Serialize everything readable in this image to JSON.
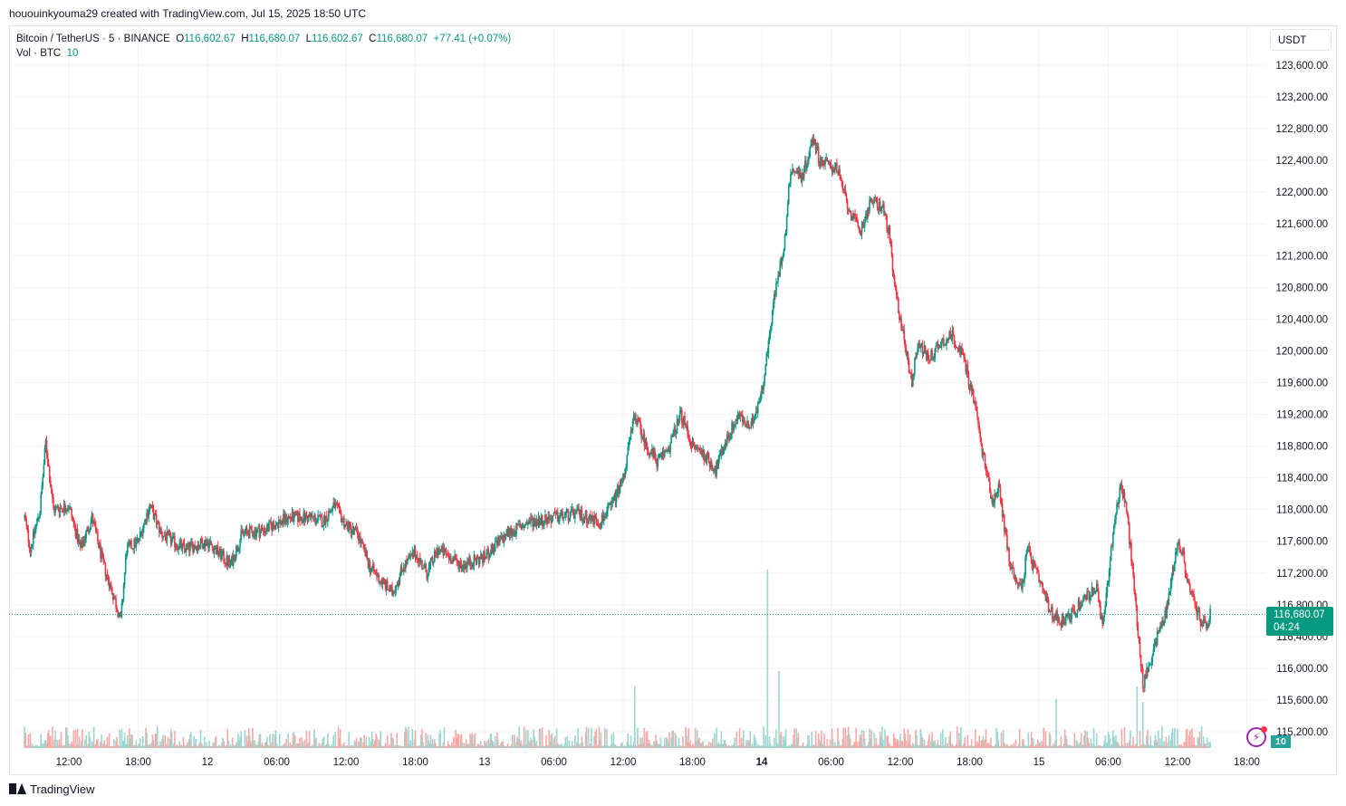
{
  "header": {
    "created": "hououinkyouma29 created with TradingView.com, Jul 15, 2025 18:50 UTC"
  },
  "legend": {
    "symbol": "Bitcoin / TetherUS · 5 · BINANCE",
    "o_key": "O",
    "o": "116,602.67",
    "h_key": "H",
    "h": "116,680.07",
    "l_key": "L",
    "l": "116,602.67",
    "c_key": "C",
    "c": "116,680.07",
    "change": "+77.41 (+0.07%)",
    "vol_label": "Vol · BTC",
    "vol_value": "10"
  },
  "currency": "USDT",
  "last_price": {
    "price": "116,680.07",
    "countdown": "04:24"
  },
  "volume_badge": "10",
  "footer": {
    "brand": "TradingView"
  },
  "colors": {
    "up": "#089981",
    "down": "#f23645",
    "vol_up": "#9bd6cf",
    "vol_down": "#f7a9a7",
    "grid": "#f0f3fa"
  },
  "icons": {
    "alert": "lightning-icon",
    "logo": "tradingview-logo-icon"
  },
  "chart_data": {
    "type": "candlestick",
    "interval": "5",
    "ylim": [
      115000,
      123800
    ],
    "y_ticks": [
      "123,600.00",
      "123,200.00",
      "122,800.00",
      "122,400.00",
      "122,000.00",
      "121,600.00",
      "121,200.00",
      "120,800.00",
      "120,400.00",
      "120,000.00",
      "119,600.00",
      "119,200.00",
      "118,800.00",
      "118,400.00",
      "118,000.00",
      "117,600.00",
      "117,200.00",
      "116,800.00",
      "116,400.00",
      "116,000.00",
      "115,600.00",
      "115,200.00"
    ],
    "y_tick_values": [
      123600,
      123200,
      122800,
      122400,
      122000,
      121600,
      121200,
      120800,
      120400,
      120000,
      119600,
      119200,
      118800,
      118400,
      118000,
      117600,
      117200,
      116800,
      116400,
      116000,
      115600,
      115200
    ],
    "x_ticks": [
      {
        "label": "12:00",
        "t": "2025-07-11 12:00",
        "bold": false
      },
      {
        "label": "18:00",
        "t": "2025-07-11 18:00",
        "bold": false
      },
      {
        "label": "12",
        "t": "2025-07-12 00:00",
        "bold": false
      },
      {
        "label": "06:00",
        "t": "2025-07-12 06:00",
        "bold": false
      },
      {
        "label": "12:00",
        "t": "2025-07-12 12:00",
        "bold": false
      },
      {
        "label": "18:00",
        "t": "2025-07-12 18:00",
        "bold": false
      },
      {
        "label": "13",
        "t": "2025-07-13 00:00",
        "bold": false
      },
      {
        "label": "06:00",
        "t": "2025-07-13 06:00",
        "bold": false
      },
      {
        "label": "12:00",
        "t": "2025-07-13 12:00",
        "bold": false
      },
      {
        "label": "18:00",
        "t": "2025-07-13 18:00",
        "bold": false
      },
      {
        "label": "14",
        "t": "2025-07-14 00:00",
        "bold": true
      },
      {
        "label": "06:00",
        "t": "2025-07-14 06:00",
        "bold": false
      },
      {
        "label": "12:00",
        "t": "2025-07-14 12:00",
        "bold": false
      },
      {
        "label": "18:00",
        "t": "2025-07-14 18:00",
        "bold": false
      },
      {
        "label": "15",
        "t": "2025-07-15 00:00",
        "bold": false
      },
      {
        "label": "06:00",
        "t": "2025-07-15 06:00",
        "bold": false
      },
      {
        "label": "12:00",
        "t": "2025-07-15 12:00",
        "bold": false
      },
      {
        "label": "18:00",
        "t": "2025-07-15 18:00",
        "bold": false
      }
    ],
    "price_path": [
      [
        "2025-07-11 08:10",
        117900
      ],
      [
        "2025-07-11 08:40",
        117500
      ],
      [
        "2025-07-11 09:30",
        118000
      ],
      [
        "2025-07-11 10:00",
        118850
      ],
      [
        "2025-07-11 10:40",
        118000
      ],
      [
        "2025-07-11 12:00",
        118050
      ],
      [
        "2025-07-11 13:00",
        117500
      ],
      [
        "2025-07-11 14:00",
        117900
      ],
      [
        "2025-07-11 15:00",
        117300
      ],
      [
        "2025-07-11 16:00",
        116850
      ],
      [
        "2025-07-11 16:30",
        116600
      ],
      [
        "2025-07-11 17:00",
        117500
      ],
      [
        "2025-07-11 18:00",
        117600
      ],
      [
        "2025-07-11 19:00",
        118050
      ],
      [
        "2025-07-11 20:00",
        117700
      ],
      [
        "2025-07-11 22:00",
        117500
      ],
      [
        "2025-07-12 00:00",
        117600
      ],
      [
        "2025-07-12 02:00",
        117300
      ],
      [
        "2025-07-12 03:00",
        117700
      ],
      [
        "2025-07-12 05:00",
        117750
      ],
      [
        "2025-07-12 07:00",
        117900
      ],
      [
        "2025-07-12 09:00",
        117900
      ],
      [
        "2025-07-12 10:00",
        117850
      ],
      [
        "2025-07-12 11:00",
        118050
      ],
      [
        "2025-07-12 12:00",
        117800
      ],
      [
        "2025-07-12 13:00",
        117700
      ],
      [
        "2025-07-12 14:00",
        117300
      ],
      [
        "2025-07-12 15:00",
        117100
      ],
      [
        "2025-07-12 16:00",
        116950
      ],
      [
        "2025-07-12 17:00",
        117300
      ],
      [
        "2025-07-12 18:00",
        117450
      ],
      [
        "2025-07-12 19:00",
        117200
      ],
      [
        "2025-07-12 20:00",
        117500
      ],
      [
        "2025-07-12 22:00",
        117300
      ],
      [
        "2025-07-13 00:00",
        117400
      ],
      [
        "2025-07-13 02:00",
        117700
      ],
      [
        "2025-07-13 04:00",
        117850
      ],
      [
        "2025-07-13 06:00",
        117900
      ],
      [
        "2025-07-13 08:00",
        117950
      ],
      [
        "2025-07-13 10:00",
        117850
      ],
      [
        "2025-07-13 11:00",
        118050
      ],
      [
        "2025-07-13 12:00",
        118400
      ],
      [
        "2025-07-13 13:00",
        119200
      ],
      [
        "2025-07-13 14:00",
        118800
      ],
      [
        "2025-07-13 15:00",
        118600
      ],
      [
        "2025-07-13 16:00",
        118800
      ],
      [
        "2025-07-13 17:00",
        119200
      ],
      [
        "2025-07-13 18:00",
        118800
      ],
      [
        "2025-07-13 19:00",
        118700
      ],
      [
        "2025-07-13 20:00",
        118500
      ],
      [
        "2025-07-13 21:00",
        118900
      ],
      [
        "2025-07-13 22:00",
        119200
      ],
      [
        "2025-07-13 23:00",
        119000
      ],
      [
        "2025-07-14 00:00",
        119500
      ],
      [
        "2025-07-14 00:30",
        120000
      ],
      [
        "2025-07-14 01:00",
        120600
      ],
      [
        "2025-07-14 02:00",
        121400
      ],
      [
        "2025-07-14 02:30",
        122300
      ],
      [
        "2025-07-14 03:30",
        122200
      ],
      [
        "2025-07-14 04:30",
        122700
      ],
      [
        "2025-07-14 05:00",
        122400
      ],
      [
        "2025-07-14 06:30",
        122300
      ],
      [
        "2025-07-14 07:30",
        121800
      ],
      [
        "2025-07-14 08:30",
        121500
      ],
      [
        "2025-07-14 09:30",
        121900
      ],
      [
        "2025-07-14 10:30",
        121800
      ],
      [
        "2025-07-14 11:00",
        121500
      ],
      [
        "2025-07-14 11:30",
        120800
      ],
      [
        "2025-07-14 12:30",
        120000
      ],
      [
        "2025-07-14 13:00",
        119600
      ],
      [
        "2025-07-14 13:30",
        120100
      ],
      [
        "2025-07-14 14:30",
        119900
      ],
      [
        "2025-07-14 15:30",
        120100
      ],
      [
        "2025-07-14 16:30",
        120200
      ],
      [
        "2025-07-14 17:30",
        119900
      ],
      [
        "2025-07-14 18:30",
        119300
      ],
      [
        "2025-07-14 19:00",
        118800
      ],
      [
        "2025-07-14 20:00",
        118100
      ],
      [
        "2025-07-14 20:30",
        118300
      ],
      [
        "2025-07-14 21:30",
        117300
      ],
      [
        "2025-07-14 22:30",
        117000
      ],
      [
        "2025-07-14 23:00",
        117500
      ],
      [
        "2025-07-15 00:00",
        117100
      ],
      [
        "2025-07-15 01:00",
        116700
      ],
      [
        "2025-07-15 02:00",
        116600
      ],
      [
        "2025-07-15 03:00",
        116700
      ],
      [
        "2025-07-15 04:00",
        116900
      ],
      [
        "2025-07-15 05:00",
        117000
      ],
      [
        "2025-07-15 05:30",
        116500
      ],
      [
        "2025-07-15 06:30",
        117800
      ],
      [
        "2025-07-15 07:00",
        118300
      ],
      [
        "2025-07-15 07:30",
        118100
      ],
      [
        "2025-07-15 08:00",
        117400
      ],
      [
        "2025-07-15 08:30",
        116600
      ],
      [
        "2025-07-15 09:00",
        115800
      ],
      [
        "2025-07-15 09:30",
        116000
      ],
      [
        "2025-07-15 10:00",
        116300
      ],
      [
        "2025-07-15 11:00",
        116700
      ],
      [
        "2025-07-15 12:00",
        117600
      ],
      [
        "2025-07-15 12:30",
        117400
      ],
      [
        "2025-07-15 13:00",
        117000
      ],
      [
        "2025-07-15 14:00",
        116600
      ],
      [
        "2025-07-15 14:30",
        116500
      ],
      [
        "2025-07-15 14:50",
        116680
      ]
    ],
    "volume_spikes": [
      [
        "2025-07-14 00:30",
        580
      ],
      [
        "2025-07-14 01:30",
        250
      ],
      [
        "2025-07-13 13:00",
        200
      ],
      [
        "2025-07-15 08:30",
        200
      ],
      [
        "2025-07-15 01:30",
        160
      ],
      [
        "2025-07-15 09:00",
        150
      ]
    ],
    "last": {
      "price": 116680.07,
      "countdown": "04:24"
    },
    "volume_last": 10
  }
}
